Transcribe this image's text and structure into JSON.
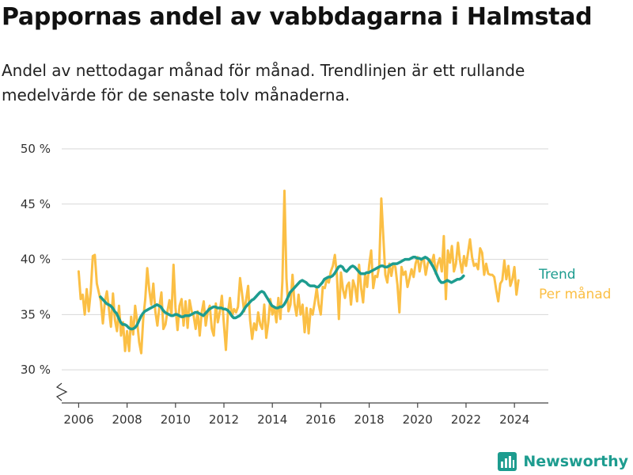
{
  "header": {
    "title": "Pappornas andel av vabbdagarna i Halmstad",
    "subtitle": "Andel av nettodagar månad för månad. Trendlinjen är ett rullande medelvärde för de senaste tolv månaderna."
  },
  "brand": {
    "name": "Newsworthy",
    "icon": "bar-chart-logo-icon",
    "color": "#1d9c8f"
  },
  "chart_data": {
    "type": "line",
    "xlabel": "",
    "ylabel": "",
    "xlim": [
      2005.3,
      2025.4
    ],
    "ylim": [
      27,
      50
    ],
    "y_ticks": [
      30,
      35,
      40,
      45,
      50
    ],
    "y_tick_labels": [
      "30 %",
      "35 %",
      "40 %",
      "45 %",
      "50 %"
    ],
    "x_ticks": [
      2006,
      2008,
      2010,
      2012,
      2014,
      2016,
      2018,
      2020,
      2022,
      2024
    ],
    "x_tick_labels": [
      "2006",
      "2008",
      "2010",
      "2012",
      "2014",
      "2016",
      "2018",
      "2020",
      "2022",
      "2024"
    ],
    "grid": "horizontal",
    "axis_break": true,
    "legend_placement": "right-end-of-lines",
    "series": [
      {
        "name": "Per månad",
        "color": "#fbbf45",
        "x_start": 2006.0,
        "x_step": 0.08333,
        "values": [
          38.9,
          36.4,
          36.8,
          35.0,
          37.3,
          35.3,
          37.1,
          40.3,
          40.4,
          37.8,
          37.0,
          36.2,
          34.2,
          36.2,
          37.1,
          35.5,
          33.9,
          36.9,
          34.5,
          33.5,
          35.8,
          33.1,
          34.3,
          31.7,
          33.5,
          31.7,
          34.8,
          33.2,
          35.8,
          34.3,
          32.5,
          31.5,
          34.6,
          36.4,
          39.2,
          37.2,
          35.9,
          37.8,
          35.3,
          34.0,
          35.7,
          37.0,
          33.7,
          34.1,
          35.3,
          36.3,
          34.9,
          39.5,
          35.6,
          33.6,
          35.8,
          36.4,
          34.0,
          36.2,
          33.8,
          36.3,
          35.3,
          34.9,
          33.7,
          35.3,
          33.1,
          35.2,
          36.2,
          34.0,
          35.3,
          35.8,
          33.7,
          33.1,
          36.0,
          34.3,
          35.3,
          36.7,
          34.1,
          31.8,
          35.2,
          36.5,
          34.8,
          35.5,
          35.2,
          35.7,
          38.3,
          36.9,
          35.3,
          36.3,
          37.6,
          34.5,
          32.8,
          34.2,
          33.6,
          35.2,
          34.1,
          33.7,
          35.9,
          32.9,
          34.3,
          36.4,
          35.0,
          35.7,
          34.3,
          36.5,
          34.6,
          38.0,
          46.2,
          38.3,
          35.3,
          35.9,
          38.6,
          36.0,
          34.9,
          36.8,
          35.0,
          35.9,
          33.4,
          35.6,
          33.3,
          35.5,
          35.0,
          36.1,
          37.4,
          35.9,
          35.0,
          37.5,
          37.4,
          38.2,
          37.9,
          38.9,
          39.4,
          40.4,
          38.6,
          34.6,
          38.8,
          37.3,
          36.5,
          37.6,
          37.9,
          35.9,
          38.1,
          37.5,
          36.2,
          39.5,
          37.4,
          36.1,
          38.7,
          37.5,
          39.5,
          40.8,
          37.4,
          38.5,
          38.4,
          39.4,
          45.5,
          42.1,
          38.6,
          37.9,
          39.6,
          38.5,
          39.6,
          39.3,
          37.7,
          35.2,
          39.3,
          38.6,
          38.9,
          37.5,
          38.3,
          39.1,
          38.4,
          39.6,
          40.2,
          38.9,
          39.9,
          40.1,
          38.6,
          39.6,
          40.0,
          39.6,
          40.4,
          38.7,
          39.6,
          40.1,
          38.9,
          42.1,
          36.4,
          40.8,
          39.7,
          41.2,
          38.9,
          39.6,
          41.5,
          39.9,
          38.8,
          40.3,
          39.4,
          40.6,
          41.8,
          40.2,
          39.4,
          39.6,
          39.1,
          41.0,
          40.6,
          38.6,
          39.6,
          38.7,
          38.6,
          38.6,
          38.4,
          37.2,
          36.2,
          37.8,
          38.1,
          39.9,
          38.2,
          39.4,
          37.6,
          38.2,
          39.3,
          36.8,
          38.1
        ]
      },
      {
        "name": "Trend",
        "color": "#1d9c8f",
        "x_start": 2006.9,
        "x_step": 0.08333,
        "values": [
          36.6,
          36.4,
          36.2,
          36.0,
          35.9,
          35.8,
          35.6,
          35.3,
          35.1,
          34.7,
          34.3,
          34.1,
          34.1,
          34.0,
          33.8,
          33.7,
          33.7,
          33.8,
          34.0,
          34.4,
          34.8,
          35.1,
          35.3,
          35.4,
          35.5,
          35.6,
          35.7,
          35.8,
          35.9,
          35.8,
          35.7,
          35.4,
          35.2,
          35.1,
          35.0,
          34.9,
          34.9,
          35.0,
          35.0,
          34.9,
          34.8,
          34.8,
          34.9,
          34.9,
          34.9,
          35.0,
          35.1,
          35.2,
          35.2,
          35.1,
          35.0,
          34.9,
          35.1,
          35.3,
          35.5,
          35.6,
          35.7,
          35.7,
          35.6,
          35.6,
          35.6,
          35.5,
          35.5,
          35.4,
          35.2,
          34.9,
          34.7,
          34.7,
          34.8,
          34.9,
          35.1,
          35.4,
          35.7,
          35.9,
          36.1,
          36.3,
          36.4,
          36.6,
          36.8,
          37.0,
          37.1,
          37.0,
          36.7,
          36.4,
          36.1,
          35.8,
          35.7,
          35.6,
          35.6,
          35.7,
          35.7,
          35.9,
          36.2,
          36.6,
          37.0,
          37.2,
          37.4,
          37.6,
          37.8,
          38.0,
          38.1,
          38.0,
          37.9,
          37.7,
          37.6,
          37.6,
          37.6,
          37.5,
          37.5,
          37.7,
          37.9,
          38.2,
          38.3,
          38.4,
          38.4,
          38.5,
          38.7,
          39.0,
          39.3,
          39.4,
          39.3,
          39.0,
          38.9,
          39.1,
          39.3,
          39.4,
          39.3,
          39.1,
          38.9,
          38.7,
          38.7,
          38.7,
          38.8,
          38.8,
          38.9,
          39.0,
          39.1,
          39.2,
          39.3,
          39.4,
          39.4,
          39.3,
          39.3,
          39.4,
          39.5,
          39.6,
          39.6,
          39.6,
          39.7,
          39.8,
          39.9,
          40.0,
          40.0,
          40.0,
          40.1,
          40.2,
          40.2,
          40.1,
          40.1,
          40.0,
          40.1,
          40.2,
          40.1,
          39.9,
          39.6,
          39.3,
          38.9,
          38.5,
          38.1,
          37.9,
          37.9,
          38.0,
          38.1,
          38.0,
          37.9,
          38.0,
          38.1,
          38.2,
          38.2,
          38.3,
          38.5
        ]
      }
    ]
  }
}
